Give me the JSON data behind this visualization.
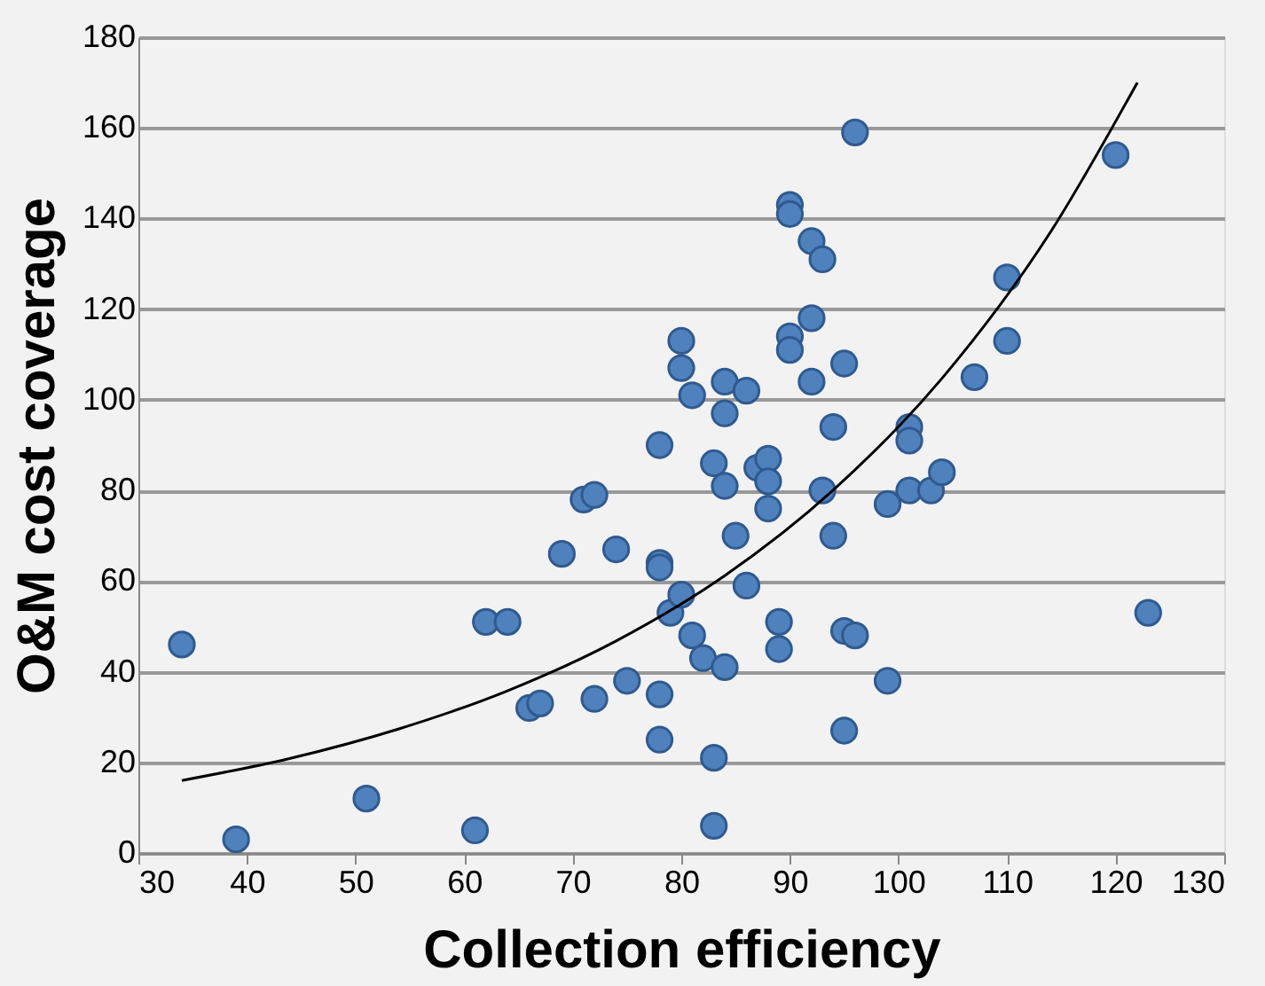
{
  "chart_data": {
    "type": "scatter",
    "xlabel": "Collection efficiency",
    "ylabel": "O&M cost coverage",
    "xlim": [
      30,
      130
    ],
    "xticks": [
      30,
      40,
      50,
      60,
      70,
      80,
      90,
      100,
      110,
      120,
      130
    ],
    "ylim": [
      0,
      180
    ],
    "yticks": [
      0,
      20,
      40,
      60,
      80,
      100,
      120,
      140,
      160,
      180
    ],
    "grid": "y",
    "series": [
      {
        "marker": "circle",
        "color": "#4f81bd",
        "x": [
          34,
          39,
          51,
          61,
          62,
          64,
          66,
          67,
          69,
          71,
          72,
          72,
          74,
          75,
          78,
          78,
          78,
          78,
          78,
          79,
          80,
          80,
          80,
          81,
          81,
          82,
          83,
          83,
          83,
          84,
          84,
          84,
          84,
          85,
          86,
          86,
          87,
          88,
          88,
          88,
          89,
          89,
          90,
          90,
          90,
          90,
          92,
          92,
          92,
          93,
          93,
          94,
          94,
          95,
          95,
          95,
          96,
          96,
          99,
          99,
          101,
          101,
          101,
          103,
          104,
          107,
          110,
          110,
          120,
          123
        ],
        "values": [
          46,
          3,
          12,
          5,
          51,
          51,
          32,
          33,
          66,
          78,
          79,
          34,
          67,
          38,
          90,
          64,
          63,
          35,
          25,
          53,
          113,
          107,
          57,
          101,
          48,
          43,
          86,
          21,
          6,
          104,
          97,
          81,
          41,
          70,
          102,
          59,
          85,
          87,
          82,
          76,
          51,
          45,
          143,
          141,
          114,
          111,
          135,
          118,
          104,
          131,
          80,
          94,
          70,
          108,
          49,
          27,
          159,
          48,
          77,
          38,
          94,
          91,
          80,
          80,
          84,
          105,
          127,
          113,
          154,
          53
        ]
      },
      {
        "type": "line",
        "color": "#000000",
        "line_style": "solid",
        "x": [
          34,
          44,
          54,
          64,
          74,
          84,
          94,
          104,
          114,
          122
        ],
        "values": [
          16,
          20.9,
          27.4,
          35.8,
          46.8,
          61.2,
          80.1,
          104.7,
          137,
          170
        ]
      }
    ]
  }
}
